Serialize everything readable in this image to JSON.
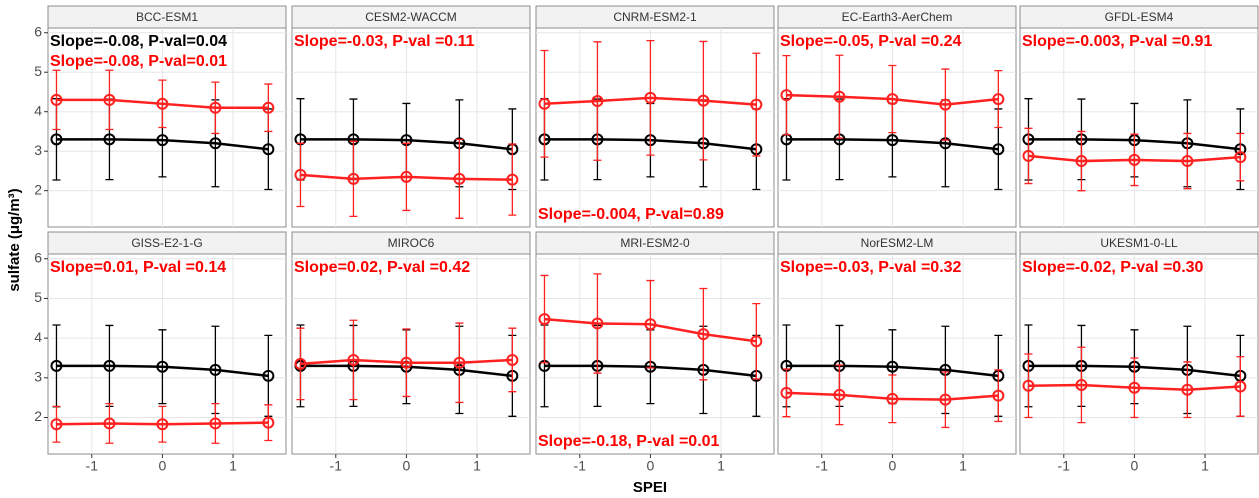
{
  "chart_data": {
    "type": "line",
    "y_label": "sulfate (μg/m³)",
    "x_label": "SPEI",
    "x": [
      -1.5,
      -0.75,
      0,
      0.75,
      1.5
    ],
    "xlim": [
      -1.62,
      1.75
    ],
    "xticks": [
      -1,
      0,
      1
    ],
    "ylim": [
      1.08,
      6.12
    ],
    "yticks": [
      2,
      3,
      4,
      5,
      6
    ],
    "grid": true,
    "panels": [
      {
        "title": "BCC-ESM1",
        "annotations": [
          {
            "text": "Slope=-0.08, P-val=0.04",
            "color": "#000000",
            "position": "top"
          },
          {
            "text": "Slope=-0.08, P-val=0.01",
            "color": "#ff0000",
            "position": "top"
          }
        ],
        "series": [
          {
            "color": "#000000",
            "values": [
              3.3,
              3.3,
              3.28,
              3.2,
              3.05
            ],
            "errors": [
              1.03,
              1.02,
              0.93,
              1.1,
              1.02
            ]
          },
          {
            "color": "#ff2020",
            "values": [
              4.3,
              4.3,
              4.2,
              4.1,
              4.1
            ],
            "errors": [
              0.75,
              0.75,
              0.6,
              0.65,
              0.6
            ]
          }
        ]
      },
      {
        "title": "CESM2-WACCM",
        "annotations": [
          {
            "text": "Slope=-0.03, P-val =0.11",
            "color": "#ff0000",
            "position": "top"
          }
        ],
        "series": [
          {
            "color": "#000000",
            "values": [
              3.3,
              3.3,
              3.28,
              3.2,
              3.05
            ],
            "errors": [
              1.03,
              1.02,
              0.93,
              1.1,
              1.02
            ]
          },
          {
            "color": "#ff2020",
            "values": [
              2.4,
              2.3,
              2.35,
              2.3,
              2.28
            ],
            "errors": [
              0.8,
              0.95,
              0.85,
              1.0,
              0.9
            ]
          }
        ]
      },
      {
        "title": "CNRM-ESM2-1",
        "annotations": [
          {
            "text": "Slope=-0.004, P-val=0.89",
            "color": "#ff0000",
            "position": "bottom"
          }
        ],
        "series": [
          {
            "color": "#000000",
            "values": [
              3.3,
              3.3,
              3.28,
              3.2,
              3.05
            ],
            "errors": [
              1.03,
              1.02,
              0.93,
              1.1,
              1.02
            ]
          },
          {
            "color": "#ff2020",
            "values": [
              4.2,
              4.27,
              4.35,
              4.28,
              4.18
            ],
            "errors": [
              1.35,
              1.5,
              1.45,
              1.5,
              1.3
            ]
          }
        ]
      },
      {
        "title": "EC-Earth3-AerChem",
        "annotations": [
          {
            "text": "Slope=-0.05, P-val =0.24",
            "color": "#ff0000",
            "position": "top"
          }
        ],
        "series": [
          {
            "color": "#000000",
            "values": [
              3.3,
              3.3,
              3.28,
              3.2,
              3.05
            ],
            "errors": [
              1.03,
              1.02,
              0.93,
              1.1,
              1.02
            ]
          },
          {
            "color": "#ff2020",
            "values": [
              4.42,
              4.38,
              4.32,
              4.18,
              4.32
            ],
            "errors": [
              1.0,
              1.05,
              0.85,
              0.9,
              0.72
            ]
          }
        ]
      },
      {
        "title": "GFDL-ESM4",
        "annotations": [
          {
            "text": "Slope=-0.003, P-val =0.91",
            "color": "#ff0000",
            "position": "top"
          }
        ],
        "series": [
          {
            "color": "#000000",
            "values": [
              3.3,
              3.3,
              3.28,
              3.2,
              3.05
            ],
            "errors": [
              1.03,
              1.02,
              0.93,
              1.1,
              1.02
            ]
          },
          {
            "color": "#ff2020",
            "values": [
              2.88,
              2.75,
              2.78,
              2.75,
              2.85
            ],
            "errors": [
              0.7,
              0.75,
              0.65,
              0.7,
              0.6
            ]
          }
        ]
      },
      {
        "title": "GISS-E2-1-G",
        "annotations": [
          {
            "text": "Slope=0.01, P-val =0.14",
            "color": "#ff0000",
            "position": "top"
          }
        ],
        "series": [
          {
            "color": "#000000",
            "values": [
              3.3,
              3.3,
              3.28,
              3.2,
              3.05
            ],
            "errors": [
              1.03,
              1.02,
              0.93,
              1.1,
              1.02
            ]
          },
          {
            "color": "#ff2020",
            "values": [
              1.83,
              1.85,
              1.83,
              1.85,
              1.87
            ],
            "errors": [
              0.45,
              0.5,
              0.45,
              0.5,
              0.45
            ]
          }
        ]
      },
      {
        "title": "MIROC6",
        "annotations": [
          {
            "text": "Slope=0.02, P-val =0.42",
            "color": "#ff0000",
            "position": "top"
          }
        ],
        "series": [
          {
            "color": "#000000",
            "values": [
              3.3,
              3.3,
              3.28,
              3.2,
              3.05
            ],
            "errors": [
              1.03,
              1.02,
              0.93,
              1.1,
              1.02
            ]
          },
          {
            "color": "#ff2020",
            "values": [
              3.35,
              3.45,
              3.38,
              3.38,
              3.45
            ],
            "errors": [
              0.9,
              1.0,
              0.85,
              1.0,
              0.8
            ]
          }
        ]
      },
      {
        "title": "MRI-ESM2-0",
        "annotations": [
          {
            "text": "Slope=-0.18, P-val =0.01",
            "color": "#ff0000",
            "position": "bottom"
          }
        ],
        "series": [
          {
            "color": "#000000",
            "values": [
              3.3,
              3.3,
              3.28,
              3.2,
              3.05
            ],
            "errors": [
              1.03,
              1.02,
              0.93,
              1.1,
              1.02
            ]
          },
          {
            "color": "#ff2020",
            "values": [
              4.48,
              4.37,
              4.35,
              4.1,
              3.92
            ],
            "errors": [
              1.1,
              1.25,
              1.1,
              1.15,
              0.95
            ]
          }
        ]
      },
      {
        "title": "NorESM2-LM",
        "annotations": [
          {
            "text": "Slope=-0.03, P-val =0.32",
            "color": "#ff0000",
            "position": "top"
          }
        ],
        "series": [
          {
            "color": "#000000",
            "values": [
              3.3,
              3.3,
              3.28,
              3.2,
              3.05
            ],
            "errors": [
              1.03,
              1.02,
              0.93,
              1.1,
              1.02
            ]
          },
          {
            "color": "#ff2020",
            "values": [
              2.62,
              2.57,
              2.47,
              2.45,
              2.55
            ],
            "errors": [
              0.6,
              0.75,
              0.6,
              0.7,
              0.65
            ]
          }
        ]
      },
      {
        "title": "UKESM1-0-LL",
        "annotations": [
          {
            "text": "Slope=-0.02, P-val =0.30",
            "color": "#ff0000",
            "position": "top"
          }
        ],
        "series": [
          {
            "color": "#000000",
            "values": [
              3.3,
              3.3,
              3.28,
              3.2,
              3.05
            ],
            "errors": [
              1.03,
              1.02,
              0.93,
              1.1,
              1.02
            ]
          },
          {
            "color": "#ff2020",
            "values": [
              2.8,
              2.82,
              2.75,
              2.7,
              2.78
            ],
            "errors": [
              0.8,
              0.95,
              0.75,
              0.7,
              0.75
            ]
          }
        ]
      }
    ]
  }
}
